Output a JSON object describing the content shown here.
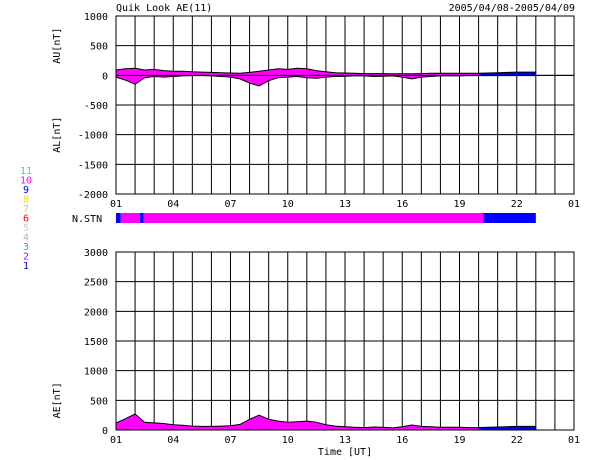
{
  "header": {
    "title": "Quik Look AE(11)",
    "date_range": "2005/04/08-2005/04/09"
  },
  "colors": {
    "station_legend": {
      "11": "#00e5ee",
      "10": "#ff00ff",
      "9": "#0000ff",
      "8": "#ffd700",
      "7": "#a0e070",
      "6": "#ff0000",
      "5": "#d0d0d0",
      "4": "#b0b0b0",
      "3": "#20b2aa",
      "2": "#8a2be2",
      "1": "#0000cd"
    },
    "fill_primary": "#ff00ff",
    "fill_secondary": "#0000ff",
    "outline": "#000000"
  },
  "station_legend_labels": [
    "11",
    "10",
    "9",
    "8",
    "7",
    "6",
    "5",
    "4",
    "3",
    "2",
    "1"
  ],
  "stn_label": "N.STN",
  "chart_data": [
    {
      "type": "area",
      "ylabel_top": "AU[nT]",
      "ylabel_bottom": "AL[nT]",
      "ylim": [
        -2000,
        1000
      ],
      "yticks": [
        "1000",
        "500",
        "0",
        "-500",
        "-1000",
        "-1500",
        "-2000"
      ],
      "xlim_hours": [
        1,
        25
      ],
      "xticks": [
        "01",
        "04",
        "07",
        "10",
        "13",
        "16",
        "19",
        "22",
        "01"
      ],
      "grid": true,
      "data_end_hour": 23,
      "x_hours": [
        1.0,
        1.5,
        2.0,
        2.5,
        3.0,
        3.5,
        4.0,
        4.5,
        5.0,
        5.5,
        6.0,
        6.5,
        7.0,
        7.5,
        8.0,
        8.5,
        9.0,
        9.5,
        10.0,
        10.5,
        11.0,
        11.5,
        12.0,
        12.5,
        13.0,
        13.5,
        14.0,
        14.5,
        15.0,
        15.5,
        16.0,
        16.5,
        17.0,
        17.5,
        18.0,
        18.5,
        19.0,
        19.5,
        20.0,
        20.5,
        21.0,
        21.5,
        22.0,
        22.5,
        23.0
      ],
      "AU": [
        90,
        110,
        120,
        90,
        100,
        80,
        70,
        70,
        60,
        55,
        50,
        45,
        40,
        35,
        50,
        70,
        90,
        110,
        100,
        120,
        110,
        80,
        60,
        45,
        40,
        35,
        30,
        30,
        30,
        25,
        25,
        25,
        30,
        35,
        35,
        35,
        35,
        35,
        35,
        40,
        45,
        50,
        55,
        55,
        55
      ],
      "AL": [
        -30,
        -80,
        -150,
        -40,
        -20,
        -30,
        -20,
        -10,
        -5,
        -5,
        -10,
        -20,
        -30,
        -60,
        -130,
        -180,
        -90,
        -40,
        -30,
        -20,
        -40,
        -50,
        -30,
        -20,
        -15,
        -10,
        -10,
        -20,
        -15,
        -10,
        -30,
        -60,
        -30,
        -20,
        -10,
        -10,
        -10,
        -5,
        -5,
        -5,
        -5,
        -5,
        -5,
        -5,
        -5
      ]
    },
    {
      "type": "area",
      "ylabel": "AE[nT]",
      "xlabel": "Time [UT]",
      "ylim": [
        0,
        3000
      ],
      "yticks": [
        "3000",
        "2500",
        "2000",
        "1500",
        "1000",
        "500",
        "0"
      ],
      "xlim_hours": [
        1,
        25
      ],
      "xticks": [
        "01",
        "04",
        "07",
        "10",
        "13",
        "16",
        "19",
        "22",
        "01"
      ],
      "grid": true,
      "data_end_hour": 23,
      "x_hours": [
        1.0,
        1.5,
        2.0,
        2.5,
        3.0,
        3.5,
        4.0,
        4.5,
        5.0,
        5.5,
        6.0,
        6.5,
        7.0,
        7.5,
        8.0,
        8.5,
        9.0,
        9.5,
        10.0,
        10.5,
        11.0,
        11.5,
        12.0,
        12.5,
        13.0,
        13.5,
        14.0,
        14.5,
        15.0,
        15.5,
        16.0,
        16.5,
        17.0,
        17.5,
        18.0,
        18.5,
        19.0,
        19.5,
        20.0,
        20.5,
        21.0,
        21.5,
        22.0,
        22.5,
        23.0
      ],
      "AE": [
        120,
        190,
        270,
        130,
        120,
        110,
        90,
        80,
        65,
        60,
        60,
        65,
        70,
        95,
        180,
        250,
        180,
        150,
        130,
        140,
        150,
        130,
        90,
        65,
        55,
        45,
        40,
        50,
        45,
        35,
        55,
        85,
        60,
        55,
        45,
        45,
        45,
        40,
        40,
        45,
        50,
        55,
        60,
        60,
        60
      ]
    }
  ],
  "stn_segments": [
    {
      "start_hour": 1.0,
      "end_hour": 1.25,
      "color": "#0000ff"
    },
    {
      "start_hour": 1.25,
      "end_hour": 2.25,
      "color": "#ff00ff"
    },
    {
      "start_hour": 2.25,
      "end_hour": 2.45,
      "color": "#0000ff"
    },
    {
      "start_hour": 2.45,
      "end_hour": 20.25,
      "color": "#ff00ff"
    },
    {
      "start_hour": 20.25,
      "end_hour": 23.0,
      "color": "#0000ff"
    }
  ]
}
